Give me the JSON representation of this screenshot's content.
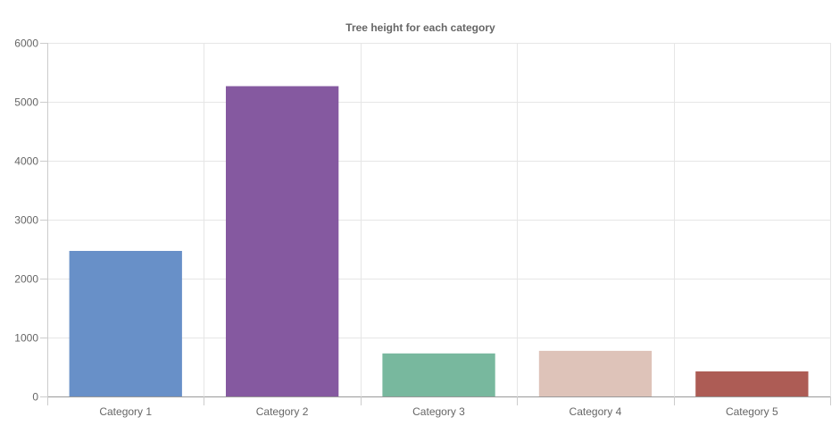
{
  "chart_data": {
    "type": "bar",
    "title": "Tree height for each category",
    "xlabel": "",
    "ylabel": "",
    "categories": [
      "Category 1",
      "Category 2",
      "Category 3",
      "Category 4",
      "Category 5"
    ],
    "values": [
      2470,
      5265,
      730,
      775,
      425
    ],
    "colors": [
      "#6890c8",
      "#8559a0",
      "#78b89e",
      "#dec3b9",
      "#ad5c55"
    ],
    "ylim": [
      0,
      6000
    ],
    "yticks": [
      0,
      1000,
      2000,
      3000,
      4000,
      5000,
      6000
    ],
    "grid": true,
    "legend": "none"
  }
}
